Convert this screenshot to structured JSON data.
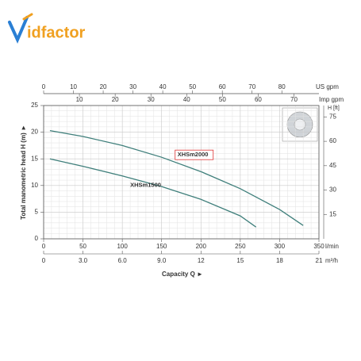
{
  "logo_text": "idfactor",
  "chart_data": {
    "type": "line",
    "ylabel": "Total manometric head H (m) ►",
    "xlabel": "Capacity Q ►",
    "xunit": "l/min",
    "xlim": [
      0,
      350
    ],
    "xticks": [
      0,
      50,
      100,
      150,
      200,
      250,
      300,
      350
    ],
    "ylim": [
      0,
      25
    ],
    "yticks": [
      0,
      5,
      10,
      15,
      20,
      25
    ],
    "grid": true,
    "extra_axes": [
      {
        "position": "bottom",
        "unit": "m³/h",
        "lim": [
          0,
          21
        ],
        "ticks": [
          0,
          {
            "value": 3,
            "label": "3.0"
          },
          {
            "value": 6,
            "label": "6.0"
          },
          {
            "value": 9,
            "label": "9.0"
          },
          12,
          15,
          18,
          21
        ]
      },
      {
        "position": "top",
        "unit": "US gpm",
        "lim": [
          0,
          92.46
        ],
        "ticks": [
          0,
          10,
          20,
          30,
          40,
          50,
          60,
          70,
          80
        ]
      },
      {
        "position": "top-inner",
        "unit": "Imp gpm",
        "lim": [
          0,
          76.99
        ],
        "ticks": [
          10,
          20,
          30,
          40,
          50,
          60,
          70
        ]
      },
      {
        "position": "right",
        "unit": "H [ft]",
        "lim": [
          0,
          82.02
        ],
        "ticks": [
          15,
          30,
          45,
          60,
          75
        ]
      }
    ],
    "series": [
      {
        "name": "XHSm2000",
        "color": "#3f7f7b",
        "x": [
          8,
          50,
          100,
          150,
          200,
          250,
          300,
          330
        ],
        "values": [
          20.3,
          19.2,
          17.5,
          15.3,
          12.6,
          9.4,
          5.5,
          2.5
        ]
      },
      {
        "name": "XHSm1500",
        "color": "#3f7f7b",
        "x": [
          8,
          50,
          100,
          150,
          200,
          250,
          270
        ],
        "values": [
          15,
          13.6,
          11.8,
          9.8,
          7.4,
          4.3,
          2.2
        ]
      }
    ]
  }
}
